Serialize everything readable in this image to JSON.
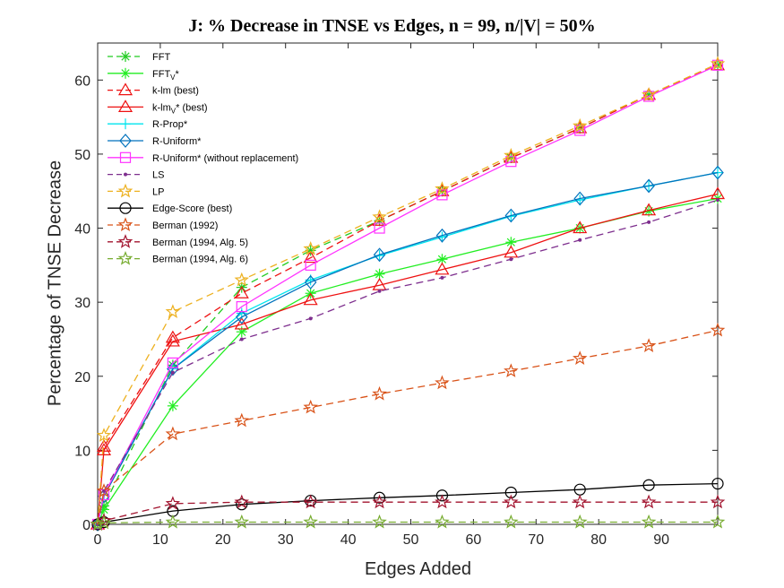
{
  "chart_data": {
    "type": "line",
    "title": "J: % Decrease in TNSE vs Edges, n = 99, n/|V| = 50%",
    "xlabel": "Edges Added",
    "ylabel": "Percentage of TNSE Decrease",
    "xlim": [
      0,
      99
    ],
    "ylim": [
      0,
      65
    ],
    "xticks": [
      0,
      10,
      20,
      30,
      40,
      50,
      60,
      70,
      80,
      90
    ],
    "yticks": [
      0,
      10,
      20,
      30,
      40,
      50,
      60
    ],
    "grid": false,
    "legend_position": "top-left",
    "x": [
      0,
      1,
      12,
      23,
      34,
      45,
      55,
      66,
      77,
      88,
      99
    ],
    "series": [
      {
        "name": "FFT",
        "sub": "",
        "tail": "",
        "color": "#22cc22",
        "dash": "dashed",
        "marker": "asterisk",
        "values": [
          0,
          2.5,
          21.5,
          32,
          37,
          41,
          45,
          49.5,
          53.5,
          58,
          62
        ]
      },
      {
        "name": "FFT",
        "sub": "V",
        "tail": "*",
        "color": "#22ee22",
        "dash": "solid",
        "marker": "asterisk",
        "values": [
          0,
          2,
          16,
          26,
          31.2,
          33.8,
          35.8,
          38.1,
          40,
          42.3,
          44
        ]
      },
      {
        "name": "k-lm (best)",
        "sub": "",
        "tail": "",
        "color": "#ee1111",
        "dash": "dashed",
        "marker": "triangle",
        "values": [
          0,
          10.5,
          25.2,
          31.2,
          36,
          41,
          45,
          49.5,
          53.5,
          58,
          62
        ]
      },
      {
        "name": "k-lm",
        "sub": "V",
        "tail": "* (best)",
        "color": "#ee1111",
        "dash": "solid",
        "marker": "triangle",
        "values": [
          0,
          10,
          24.7,
          27,
          30.3,
          32.3,
          34.4,
          36.7,
          40,
          42.4,
          44.6
        ]
      },
      {
        "name": "R-Prop*",
        "sub": "",
        "tail": "",
        "color": "#00e5ee",
        "dash": "solid",
        "marker": "plus",
        "values": [
          0,
          4,
          21,
          28.5,
          33,
          36.3,
          38.8,
          41.6,
          43.8,
          45.7,
          47.5
        ]
      },
      {
        "name": "R-Uniform*",
        "sub": "",
        "tail": "",
        "color": "#0072bd",
        "dash": "solid",
        "marker": "diamond",
        "values": [
          0,
          3.8,
          21,
          28,
          32.7,
          36.4,
          39,
          41.7,
          44,
          45.7,
          47.5
        ]
      },
      {
        "name": "R-Uniform* (without replacement)",
        "sub": "",
        "tail": "",
        "color": "#ff33ff",
        "dash": "solid",
        "marker": "square",
        "values": [
          0,
          4,
          21.8,
          29.4,
          35,
          40,
          44.5,
          49,
          53.2,
          57.8,
          62
        ]
      },
      {
        "name": "LS",
        "sub": "",
        "tail": "",
        "color": "#7e2f8e",
        "dash": "dashed",
        "marker": "dot",
        "values": [
          0,
          4.5,
          20.5,
          25,
          27.8,
          31.5,
          33.3,
          35.8,
          38.4,
          40.8,
          43.8
        ]
      },
      {
        "name": "LP",
        "sub": "",
        "tail": "",
        "color": "#edb120",
        "dash": "dashed",
        "marker": "star",
        "values": [
          0,
          12,
          28.7,
          33,
          37.2,
          41.5,
          45.3,
          49.8,
          53.8,
          58,
          62.2
        ]
      },
      {
        "name": "Edge-Score (best)",
        "sub": "",
        "tail": "",
        "color": "#000000",
        "dash": "solid",
        "marker": "circle",
        "values": [
          0,
          0.3,
          1.8,
          2.7,
          3.2,
          3.6,
          3.9,
          4.3,
          4.7,
          5.3,
          5.5
        ]
      },
      {
        "name": "Berman (1992)",
        "sub": "",
        "tail": "",
        "color": "#d95319",
        "dash": "dashed",
        "marker": "star",
        "values": [
          0,
          4.5,
          12.2,
          14,
          15.8,
          17.6,
          19.1,
          20.7,
          22.4,
          24.1,
          26.2
        ]
      },
      {
        "name": "Berman (1994, Alg. 5)",
        "sub": "",
        "tail": "",
        "color": "#a2142f",
        "dash": "dashed",
        "marker": "star",
        "values": [
          0,
          0.5,
          2.8,
          3,
          3,
          3,
          3,
          3,
          3,
          3,
          3
        ]
      },
      {
        "name": "Berman (1994, Alg. 6)",
        "sub": "",
        "tail": "",
        "color": "#77ac30",
        "dash": "dashed",
        "marker": "star",
        "values": [
          0,
          0.2,
          0.3,
          0.3,
          0.3,
          0.3,
          0.3,
          0.3,
          0.3,
          0.3,
          0.3
        ]
      }
    ]
  }
}
